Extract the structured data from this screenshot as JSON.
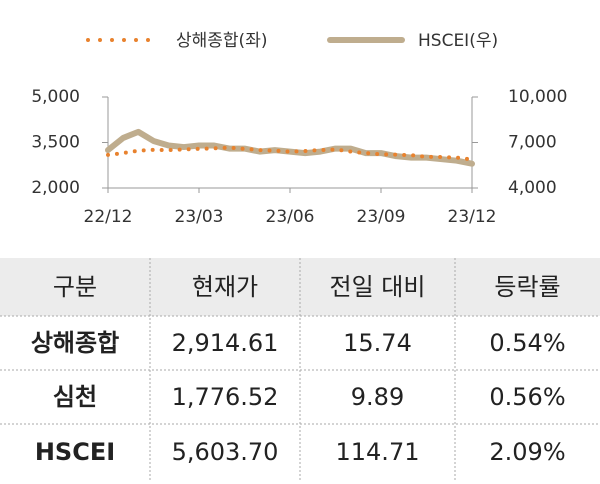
{
  "chart_data": {
    "type": "line",
    "categories": [
      "22/12",
      null,
      null,
      null,
      null,
      null,
      "23/03",
      null,
      null,
      null,
      null,
      null,
      "23/06",
      null,
      null,
      null,
      null,
      null,
      "23/09",
      null,
      null,
      null,
      null,
      null,
      "23/12"
    ],
    "series": [
      {
        "name": "상해종합(좌)",
        "color": "#e8822e",
        "line_style": "dotted",
        "line_width": 4,
        "values": [
          3090,
          3150,
          3230,
          3260,
          3250,
          3270,
          3290,
          3310,
          3330,
          3290,
          3250,
          3230,
          3200,
          3220,
          3250,
          3270,
          3200,
          3150,
          3110,
          3100,
          3080,
          3030,
          3020,
          3000,
          2940
        ]
      },
      {
        "name": "HSCEI(우)",
        "color": "#bfad8e",
        "line_style": "solid",
        "line_width": 6,
        "axis": "y2",
        "values": [
          6500,
          7300,
          7700,
          7100,
          6800,
          6700,
          6800,
          6800,
          6600,
          6600,
          6400,
          6500,
          6400,
          6300,
          6400,
          6600,
          6600,
          6300,
          6300,
          6100,
          6000,
          6000,
          5900,
          5800,
          5600
        ]
      }
    ],
    "ylim": [
      2000,
      5000
    ],
    "yticks": [
      {
        "value": 2000,
        "label": "2,000"
      },
      {
        "value": 3500,
        "label": "3,500"
      },
      {
        "value": 5000,
        "label": "5,000"
      }
    ],
    "y2lim": [
      4000,
      10000
    ],
    "y2ticks": [
      {
        "value": 4000,
        "label": "4,000"
      },
      {
        "value": 7000,
        "label": "7,000"
      },
      {
        "value": 10000,
        "label": "10,000"
      }
    ]
  },
  "table": {
    "header": [
      "구분",
      "현재가",
      "전일 대비",
      "등락률"
    ],
    "rows": [
      [
        "상해종합",
        "2,914.61",
        "15.74",
        "0.54%"
      ],
      [
        "심천",
        "1,776.52",
        "9.89",
        "0.56%"
      ],
      [
        "HSCEI",
        "5,603.70",
        "114.71",
        "2.09%"
      ]
    ]
  }
}
